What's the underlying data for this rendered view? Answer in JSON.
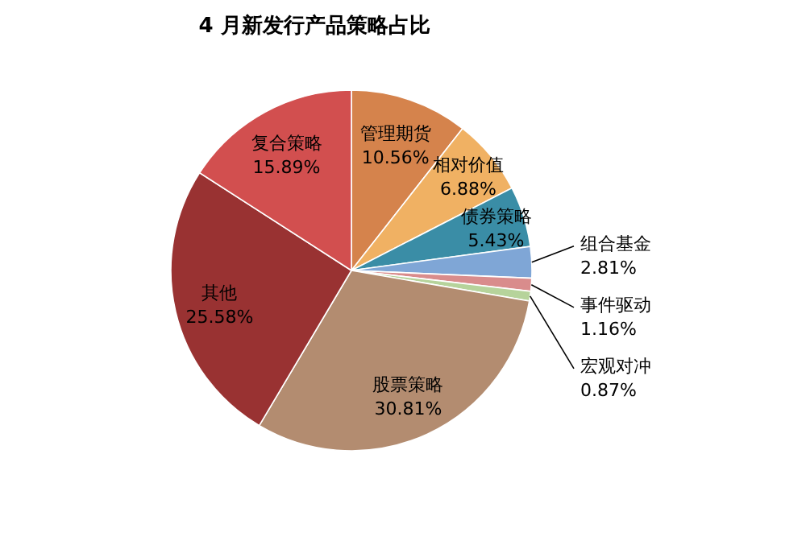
{
  "chart_data": {
    "type": "pie",
    "title": "4 月新发行产品策略占比",
    "categories": [
      "管理期货",
      "相对价值",
      "债券策略",
      "组合基金",
      "事件驱动",
      "宏观对冲",
      "股票策略",
      "其他",
      "复合策略"
    ],
    "values": [
      10.56,
      6.88,
      5.43,
      2.81,
      1.16,
      0.87,
      30.81,
      25.58,
      15.89
    ],
    "value_labels": [
      "10.56%",
      "6.88%",
      "5.43%",
      "2.81%",
      "1.16%",
      "0.87%",
      "30.81%",
      "25.58%",
      "15.89%"
    ],
    "colors": [
      "#d5834c",
      "#f0b163",
      "#3a8da6",
      "#7fa6d6",
      "#d98c8c",
      "#b6d39b",
      "#b38c70",
      "#993232",
      "#d24f4f"
    ]
  }
}
